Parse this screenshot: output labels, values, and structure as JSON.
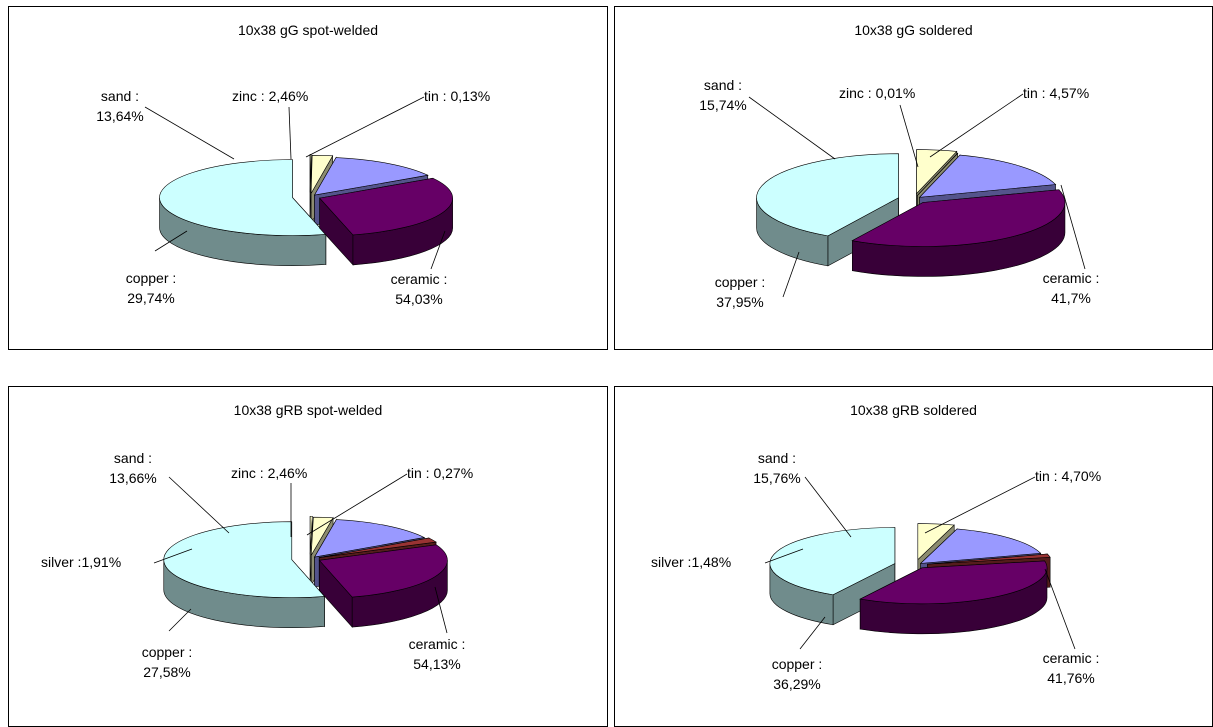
{
  "colors": {
    "ceramic": "#ccffff",
    "copper": "#660066",
    "sand": "#9999ff",
    "zinc": "#ffffcc",
    "tin": "#ffffcc",
    "silver": "#993333"
  },
  "chart_data": [
    {
      "type": "pie",
      "title": "10x38 gG spot-welded",
      "slices": [
        {
          "name": "ceramic",
          "value": 54.03,
          "color": "#ccffff",
          "label": "ceramic :",
          "value_label": "54,03%"
        },
        {
          "name": "copper",
          "value": 29.74,
          "color": "#660066",
          "label": "copper :",
          "value_label": "29,74%"
        },
        {
          "name": "sand",
          "value": 13.64,
          "color": "#9999ff",
          "label": "sand :",
          "value_label": "13,64%"
        },
        {
          "name": "zinc",
          "value": 2.46,
          "color": "#ffffcc",
          "label": "zinc : 2,46%",
          "value_label": ""
        },
        {
          "name": "tin",
          "value": 0.13,
          "color": "#ffffcc",
          "label": "tin : 0,13%",
          "value_label": ""
        }
      ]
    },
    {
      "type": "pie",
      "title": "10x38 gG soldered",
      "slices": [
        {
          "name": "ceramic",
          "value": 41.7,
          "color": "#ccffff",
          "label": "ceramic :",
          "value_label": "41,7%"
        },
        {
          "name": "copper",
          "value": 37.95,
          "color": "#660066",
          "label": "copper :",
          "value_label": "37,95%"
        },
        {
          "name": "sand",
          "value": 15.74,
          "color": "#9999ff",
          "label": "sand :",
          "value_label": "15,74%"
        },
        {
          "name": "zinc",
          "value": 0.01,
          "color": "#ffffcc",
          "label": "zinc : 0,01%",
          "value_label": ""
        },
        {
          "name": "tin",
          "value": 4.57,
          "color": "#ffffcc",
          "label": "tin : 4,57%",
          "value_label": ""
        }
      ]
    },
    {
      "type": "pie",
      "title": "10x38 gRB spot-welded",
      "slices": [
        {
          "name": "ceramic",
          "value": 54.13,
          "color": "#ccffff",
          "label": "ceramic :",
          "value_label": "54,13%"
        },
        {
          "name": "copper",
          "value": 27.58,
          "color": "#660066",
          "label": "copper :",
          "value_label": "27,58%"
        },
        {
          "name": "silver",
          "value": 1.91,
          "color": "#993333",
          "label": "silver :1,91%",
          "value_label": ""
        },
        {
          "name": "sand",
          "value": 13.66,
          "color": "#9999ff",
          "label": "sand :",
          "value_label": "13,66%"
        },
        {
          "name": "zinc",
          "value": 2.46,
          "color": "#ffffcc",
          "label": "zinc : 2,46%",
          "value_label": ""
        },
        {
          "name": "tin",
          "value": 0.27,
          "color": "#ffffcc",
          "label": "tin : 0,27%",
          "value_label": ""
        }
      ]
    },
    {
      "type": "pie",
      "title": "10x38 gRB soldered",
      "slices": [
        {
          "name": "ceramic",
          "value": 41.76,
          "color": "#ccffff",
          "label": "ceramic :",
          "value_label": "41,76%"
        },
        {
          "name": "copper",
          "value": 36.29,
          "color": "#660066",
          "label": "copper :",
          "value_label": "36,29%"
        },
        {
          "name": "silver",
          "value": 1.48,
          "color": "#993333",
          "label": "silver :1,48%",
          "value_label": ""
        },
        {
          "name": "sand",
          "value": 15.76,
          "color": "#9999ff",
          "label": "sand :",
          "value_label": "15,76%"
        },
        {
          "name": "tin",
          "value": 4.7,
          "color": "#ffffcc",
          "label": "tin : 4,70%",
          "value_label": ""
        }
      ]
    }
  ]
}
